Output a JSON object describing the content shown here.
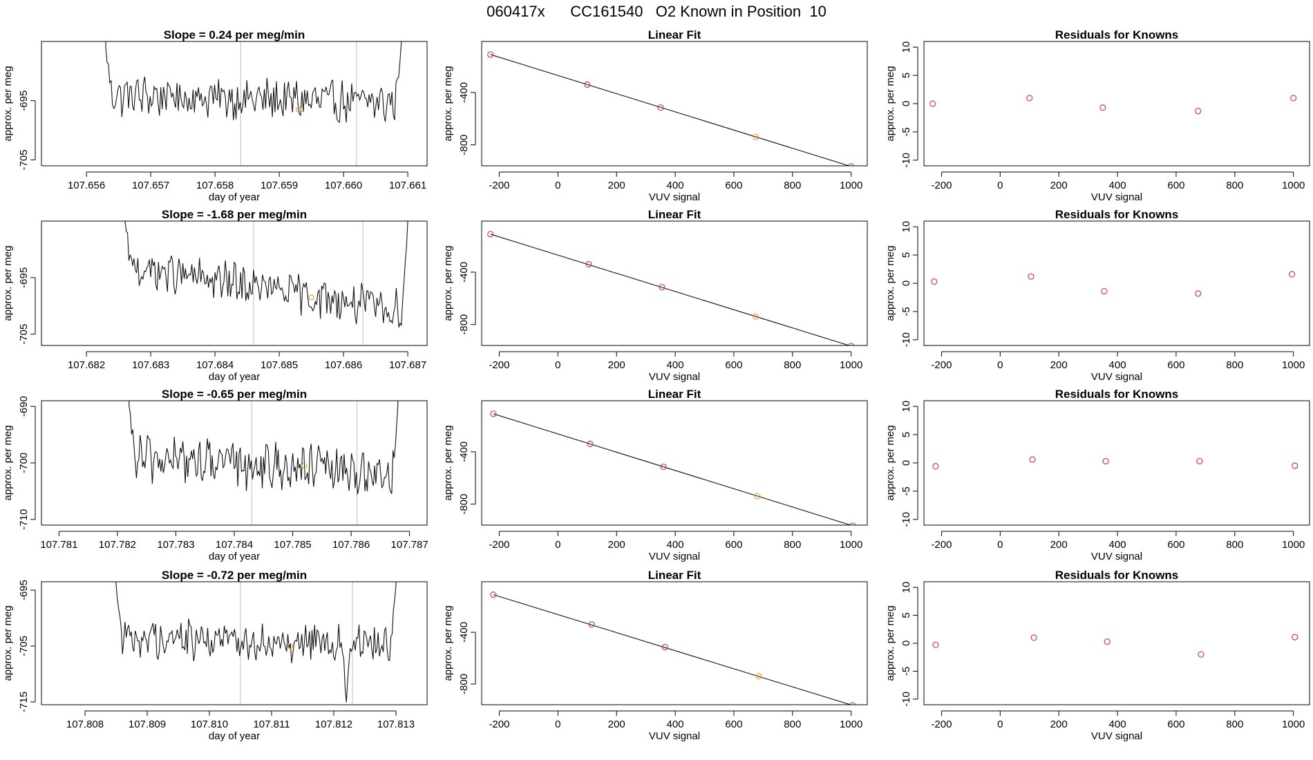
{
  "figure": {
    "title": "060417x      CC161540   O2 Known in Position  10"
  },
  "chart_data": [
    {
      "type": "line",
      "row": 1,
      "col": 1,
      "title": "Slope =  0.24  per meg/min",
      "xlabel": "day of year",
      "ylabel": "approx. per meg",
      "xlim": [
        107.6553,
        107.6613
      ],
      "ylim": [
        -706,
        -685
      ],
      "xticks": [
        107.656,
        107.657,
        107.658,
        107.659,
        107.66,
        107.661
      ],
      "xtick_labels": [
        "107.656",
        "107.657",
        "107.658",
        "107.659",
        "107.660",
        "107.661"
      ],
      "yticks": [
        -705,
        -695
      ],
      "ytick_labels": [
        "-705",
        "-695"
      ],
      "vlines": [
        107.6584,
        107.6602
      ],
      "trace_start": 107.6563,
      "trace_end": 107.6609,
      "start_value": -686,
      "end_value": -685,
      "baseline_start": -694,
      "baseline_end": -695.5,
      "noise": 3.0,
      "highlight_point": {
        "x": 107.6593,
        "y": -696.5
      }
    },
    {
      "type": "scatter",
      "row": 1,
      "col": 2,
      "title": "Linear Fit",
      "xlabel": "VUV signal",
      "ylabel": "approx. per meg",
      "xlim": [
        -260,
        1055
      ],
      "ylim": [
        -960,
        -10
      ],
      "xticks": [
        -200,
        0,
        200,
        400,
        600,
        800,
        1000
      ],
      "yticks": [
        -800,
        -400
      ],
      "ytick_labels": [
        "-800",
        "-400"
      ],
      "points": [
        {
          "x": -230,
          "y": -110,
          "color": "#d43c3c"
        },
        {
          "x": 100,
          "y": -340,
          "color": "#d43c3c"
        },
        {
          "x": 350,
          "y": -515,
          "color": "#d43c3c"
        },
        {
          "x": 675,
          "y": -740,
          "color": "#e8a23a"
        },
        {
          "x": 1000,
          "y": -965,
          "color": "#d43c3c"
        }
      ],
      "fit_line": {
        "x0": -230,
        "y0": -110,
        "x1": 1000,
        "y1": -965
      }
    },
    {
      "type": "scatter",
      "row": 1,
      "col": 3,
      "title": "Residuals for Knowns",
      "xlabel": "VUV signal",
      "ylabel": "approx. per meg",
      "xlim": [
        -260,
        1055
      ],
      "ylim": [
        -11,
        11
      ],
      "xticks": [
        -200,
        0,
        200,
        400,
        600,
        800,
        1000
      ],
      "yticks": [
        -10,
        -5,
        0,
        5,
        10
      ],
      "ytick_labels": [
        "-10",
        "-5",
        "0",
        "5",
        "10"
      ],
      "points": [
        {
          "x": -230,
          "y": 0.0,
          "color": "#d43c3c"
        },
        {
          "x": 100,
          "y": 1.0,
          "color": "#d43c3c"
        },
        {
          "x": 350,
          "y": -0.7,
          "color": "#d43c3c"
        },
        {
          "x": 675,
          "y": -1.3,
          "color": "#d43c3c"
        },
        {
          "x": 1000,
          "y": 1.0,
          "color": "#d43c3c"
        }
      ]
    },
    {
      "type": "line",
      "row": 2,
      "col": 1,
      "title": "Slope =  -1.68  per meg/min",
      "xlabel": "day of year",
      "ylabel": "approx. per meg",
      "xlim": [
        107.6813,
        107.6873
      ],
      "ylim": [
        -707,
        -685
      ],
      "xticks": [
        107.682,
        107.683,
        107.684,
        107.685,
        107.686,
        107.687
      ],
      "xtick_labels": [
        "107.682",
        "107.683",
        "107.684",
        "107.685",
        "107.686",
        "107.687"
      ],
      "yticks": [
        -705,
        -695
      ],
      "ytick_labels": [
        "-705",
        "-695"
      ],
      "vlines": [
        107.6846,
        107.6863
      ],
      "trace_start": 107.6826,
      "trace_end": 107.687,
      "start_value": -685,
      "end_value": -685,
      "baseline_start": -693,
      "baseline_end": -701,
      "noise": 3.0,
      "highlight_point": {
        "x": 107.6855,
        "y": -698.5
      }
    },
    {
      "type": "scatter",
      "row": 2,
      "col": 2,
      "title": "Linear Fit",
      "xlabel": "VUV signal",
      "ylabel": "approx. per meg",
      "xlim": [
        -260,
        1055
      ],
      "ylim": [
        -960,
        -10
      ],
      "xticks": [
        -200,
        0,
        200,
        400,
        600,
        800,
        1000
      ],
      "yticks": [
        -800,
        -400
      ],
      "ytick_labels": [
        "-800",
        "-400"
      ],
      "points": [
        {
          "x": -230,
          "y": -110,
          "color": "#d43c3c"
        },
        {
          "x": 105,
          "y": -340,
          "color": "#d43c3c"
        },
        {
          "x": 355,
          "y": -515,
          "color": "#d43c3c"
        },
        {
          "x": 675,
          "y": -740,
          "color": "#e8a23a"
        },
        {
          "x": 1000,
          "y": -965,
          "color": "#d43c3c"
        }
      ],
      "fit_line": {
        "x0": -230,
        "y0": -110,
        "x1": 1000,
        "y1": -965
      }
    },
    {
      "type": "scatter",
      "row": 2,
      "col": 3,
      "title": "Residuals for Knowns",
      "xlabel": "VUV signal",
      "ylabel": "approx. per meg",
      "xlim": [
        -260,
        1055
      ],
      "ylim": [
        -11,
        11
      ],
      "xticks": [
        -200,
        0,
        200,
        400,
        600,
        800,
        1000
      ],
      "yticks": [
        -10,
        -5,
        0,
        5,
        10
      ],
      "ytick_labels": [
        "-10",
        "-5",
        "0",
        "5",
        "10"
      ],
      "points": [
        {
          "x": -225,
          "y": 0.3,
          "color": "#d43c3c"
        },
        {
          "x": 105,
          "y": 1.2,
          "color": "#d43c3c"
        },
        {
          "x": 355,
          "y": -1.4,
          "color": "#d43c3c"
        },
        {
          "x": 675,
          "y": -1.8,
          "color": "#d43c3c"
        },
        {
          "x": 995,
          "y": 1.6,
          "color": "#d43c3c"
        }
      ]
    },
    {
      "type": "line",
      "row": 3,
      "col": 1,
      "title": "Slope =  -0.65  per meg/min",
      "xlabel": "day of year",
      "ylabel": "approx. per meg",
      "xlim": [
        107.7807,
        107.7873
      ],
      "ylim": [
        -711,
        -689
      ],
      "xticks": [
        107.781,
        107.782,
        107.783,
        107.784,
        107.785,
        107.786,
        107.787
      ],
      "xtick_labels": [
        "107.781",
        "107.782",
        "107.783",
        "107.784",
        "107.785",
        "107.786",
        "107.787"
      ],
      "yticks": [
        -710,
        -700,
        -690
      ],
      "ytick_labels": [
        "-710",
        "-700",
        "-690"
      ],
      "vlines": [
        107.7843,
        107.7861
      ],
      "trace_start": 107.7822,
      "trace_end": 107.7868,
      "start_value": -690,
      "end_value": -690,
      "baseline_start": -699,
      "baseline_end": -702,
      "noise": 3.5,
      "highlight_point": {
        "x": 107.7852,
        "y": -700.5
      }
    },
    {
      "type": "scatter",
      "row": 3,
      "col": 2,
      "title": "Linear Fit",
      "xlabel": "VUV signal",
      "ylabel": "approx. per meg",
      "xlim": [
        -260,
        1055
      ],
      "ylim": [
        -960,
        -10
      ],
      "xticks": [
        -200,
        0,
        200,
        400,
        600,
        800,
        1000
      ],
      "yticks": [
        -800,
        -400
      ],
      "ytick_labels": [
        "-800",
        "-400"
      ],
      "points": [
        {
          "x": -220,
          "y": -110,
          "color": "#d43c3c"
        },
        {
          "x": 110,
          "y": -340,
          "color": "#d43c3c"
        },
        {
          "x": 360,
          "y": -515,
          "color": "#d43c3c"
        },
        {
          "x": 680,
          "y": -740,
          "color": "#e8a23a"
        },
        {
          "x": 1005,
          "y": -965,
          "color": "#d43c3c"
        }
      ],
      "fit_line": {
        "x0": -220,
        "y0": -110,
        "x1": 1005,
        "y1": -965
      }
    },
    {
      "type": "scatter",
      "row": 3,
      "col": 3,
      "title": "Residuals for Knowns",
      "xlabel": "VUV signal",
      "ylabel": "approx. per meg",
      "xlim": [
        -260,
        1055
      ],
      "ylim": [
        -11,
        11
      ],
      "xticks": [
        -200,
        0,
        200,
        400,
        600,
        800,
        1000
      ],
      "yticks": [
        -10,
        -5,
        0,
        5,
        10
      ],
      "ytick_labels": [
        "-10",
        "-5",
        "0",
        "5",
        "10"
      ],
      "points": [
        {
          "x": -220,
          "y": -0.6,
          "color": "#d43c3c"
        },
        {
          "x": 110,
          "y": 0.6,
          "color": "#d43c3c"
        },
        {
          "x": 360,
          "y": 0.3,
          "color": "#d43c3c"
        },
        {
          "x": 680,
          "y": 0.3,
          "color": "#d43c3c"
        },
        {
          "x": 1005,
          "y": -0.5,
          "color": "#d43c3c"
        }
      ]
    },
    {
      "type": "line",
      "row": 4,
      "col": 1,
      "title": "Slope =  -0.72  per meg/min",
      "xlabel": "day of year",
      "ylabel": "approx. per meg",
      "xlim": [
        107.8073,
        107.8135
      ],
      "ylim": [
        -715.5,
        -693.5
      ],
      "xticks": [
        107.808,
        107.809,
        107.81,
        107.811,
        107.812,
        107.813
      ],
      "xtick_labels": [
        "107.808",
        "107.809",
        "107.810",
        "107.811",
        "107.812",
        "107.813"
      ],
      "yticks": [
        -715,
        -705,
        -695
      ],
      "ytick_labels": [
        "-715",
        "-705",
        "-695"
      ],
      "vlines": [
        107.8105,
        107.8123
      ],
      "trace_start": 107.8085,
      "trace_end": 107.813,
      "start_value": -694,
      "end_value": -694,
      "baseline_start": -703.5,
      "baseline_end": -704.5,
      "noise": 3.0,
      "dip": {
        "x": 107.8122,
        "y": -715.5
      },
      "highlight_point": {
        "x": 107.8113,
        "y": -705
      }
    },
    {
      "type": "scatter",
      "row": 4,
      "col": 2,
      "title": "Linear Fit",
      "xlabel": "VUV signal",
      "ylabel": "approx. per meg",
      "xlim": [
        -260,
        1055
      ],
      "ylim": [
        -960,
        -10
      ],
      "xticks": [
        -200,
        0,
        200,
        400,
        600,
        800,
        1000
      ],
      "yticks": [
        -800,
        -400
      ],
      "ytick_labels": [
        "-800",
        "-400"
      ],
      "points": [
        {
          "x": -220,
          "y": -110,
          "color": "#d43c3c"
        },
        {
          "x": 115,
          "y": -340,
          "color": "#d43c3c"
        },
        {
          "x": 365,
          "y": -515,
          "color": "#d43c3c"
        },
        {
          "x": 685,
          "y": -740,
          "color": "#e8a23a"
        },
        {
          "x": 1005,
          "y": -965,
          "color": "#d43c3c"
        }
      ],
      "fit_line": {
        "x0": -220,
        "y0": -110,
        "x1": 1005,
        "y1": -965
      }
    },
    {
      "type": "scatter",
      "row": 4,
      "col": 3,
      "title": "Residuals for Knowns",
      "xlabel": "VUV signal",
      "ylabel": "approx. per meg",
      "xlim": [
        -260,
        1055
      ],
      "ylim": [
        -11,
        11
      ],
      "xticks": [
        -200,
        0,
        200,
        400,
        600,
        800,
        1000
      ],
      "yticks": [
        -10,
        -5,
        0,
        5,
        10
      ],
      "ytick_labels": [
        "-10",
        "-5",
        "0",
        "5",
        "10"
      ],
      "points": [
        {
          "x": -220,
          "y": -0.3,
          "color": "#d43c3c"
        },
        {
          "x": 115,
          "y": 1.0,
          "color": "#d43c3c"
        },
        {
          "x": 365,
          "y": 0.3,
          "color": "#d43c3c"
        },
        {
          "x": 685,
          "y": -2.0,
          "color": "#d43c3c"
        },
        {
          "x": 1005,
          "y": 1.1,
          "color": "#d43c3c"
        }
      ]
    }
  ]
}
